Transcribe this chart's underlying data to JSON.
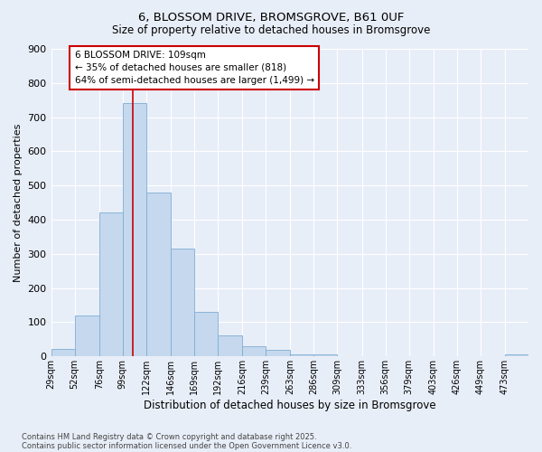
{
  "title_line1": "6, BLOSSOM DRIVE, BROMSGROVE, B61 0UF",
  "title_line2": "Size of property relative to detached houses in Bromsgrove",
  "xlabel": "Distribution of detached houses by size in Bromsgrove",
  "ylabel": "Number of detached properties",
  "bar_color": "#c5d8ed",
  "bar_edge_color": "#7eadd4",
  "bg_color": "#e8eef8",
  "grid_color": "#ffffff",
  "bin_edges": [
    29,
    52,
    76,
    99,
    122,
    146,
    169,
    192,
    216,
    239,
    263,
    286,
    309,
    333,
    356,
    379,
    403,
    426,
    449,
    473,
    496
  ],
  "bar_heights": [
    22,
    120,
    420,
    740,
    480,
    315,
    130,
    62,
    30,
    20,
    7,
    7,
    0,
    0,
    0,
    0,
    0,
    0,
    0,
    7
  ],
  "property_size": 109,
  "annotation_text": "6 BLOSSOM DRIVE: 109sqm\n← 35% of detached houses are smaller (818)\n64% of semi-detached houses are larger (1,499) →",
  "annotation_box_color": "#ffffff",
  "annotation_border_color": "#cc0000",
  "vline_color": "#cc0000",
  "ylim": [
    0,
    900
  ],
  "yticks": [
    0,
    100,
    200,
    300,
    400,
    500,
    600,
    700,
    800,
    900
  ],
  "footnote1": "Contains HM Land Registry data © Crown copyright and database right 2025.",
  "footnote2": "Contains public sector information licensed under the Open Government Licence v3.0."
}
